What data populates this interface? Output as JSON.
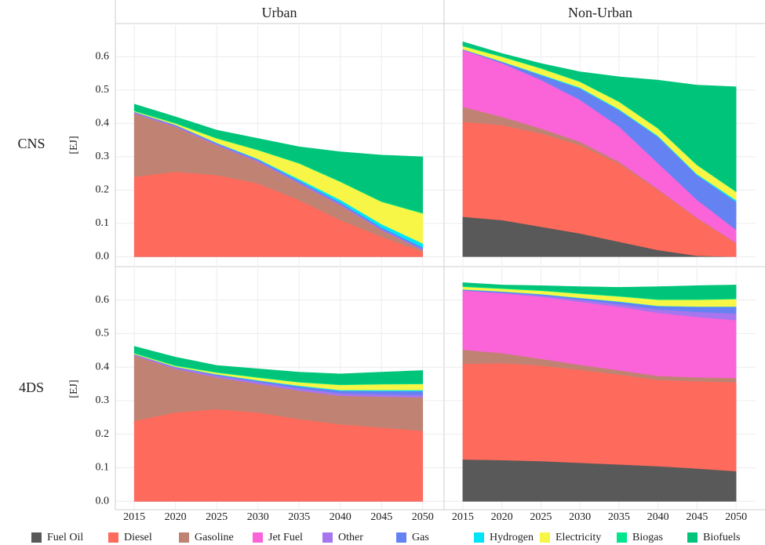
{
  "chart_data": {
    "type": "area",
    "stacked": true,
    "columns": [
      "Urban",
      "Non-Urban"
    ],
    "rows": [
      "CNS",
      "4DS"
    ],
    "y_label": "[EJ]",
    "x": [
      2015,
      2020,
      2025,
      2030,
      2035,
      2040,
      2045,
      2050
    ],
    "xlim": [
      2012.7,
      2052.5
    ],
    "xticks": [
      2015,
      2020,
      2025,
      2030,
      2035,
      2040,
      2045,
      2050
    ],
    "ylim": [
      -0.025,
      0.695
    ],
    "yticks": [
      {
        "value": 0,
        "label": "0.0"
      },
      0.1,
      0.2,
      0.3,
      0.4,
      0.5,
      0.6
    ],
    "grid": true,
    "series": [
      {
        "name": "Fuel Oil",
        "color": "#595959",
        "values": [
          [
            0,
            0,
            0,
            0,
            0,
            0,
            0,
            0
          ],
          [
            0.12,
            0.11,
            0.09,
            0.07,
            0.045,
            0.02,
            0.003,
            0
          ],
          [
            0,
            0,
            0,
            0,
            0,
            0,
            0,
            0
          ],
          [
            0.125,
            0.123,
            0.12,
            0.115,
            0.11,
            0.105,
            0.098,
            0.09
          ]
        ]
      },
      {
        "name": "Diesel",
        "color": "#fe6a5c",
        "values": [
          [
            0.24,
            0.255,
            0.245,
            0.22,
            0.17,
            0.11,
            0.06,
            0.015
          ],
          [
            0.285,
            0.285,
            0.28,
            0.265,
            0.235,
            0.18,
            0.112,
            0.04
          ],
          [
            0.24,
            0.265,
            0.275,
            0.265,
            0.245,
            0.23,
            0.22,
            0.21
          ],
          [
            0.285,
            0.289,
            0.285,
            0.277,
            0.268,
            0.257,
            0.26,
            0.265
          ]
        ]
      },
      {
        "name": "Gasoline",
        "color": "#c08373",
        "values": [
          [
            0.19,
            0.135,
            0.09,
            0.065,
            0.05,
            0.045,
            0.02,
            0.005
          ],
          [
            0.045,
            0.025,
            0.015,
            0.01,
            0.005,
            0.003,
            0.002,
            0.002
          ],
          [
            0.195,
            0.13,
            0.095,
            0.085,
            0.085,
            0.085,
            0.092,
            0.1
          ],
          [
            0.042,
            0.03,
            0.02,
            0.015,
            0.013,
            0.012,
            0.012,
            0.013
          ]
        ]
      },
      {
        "name": "Jet Fuel",
        "color": "#fb63d8",
        "values": [
          [
            0,
            0,
            0,
            0,
            0,
            0,
            0,
            0
          ],
          [
            0.17,
            0.16,
            0.145,
            0.125,
            0.105,
            0.077,
            0.053,
            0.038
          ],
          [
            0,
            0,
            0,
            0,
            0,
            0,
            0,
            0
          ],
          [
            0.176,
            0.178,
            0.185,
            0.188,
            0.189,
            0.188,
            0.18,
            0.172
          ]
        ]
      },
      {
        "name": "Other",
        "color": "#a676ee",
        "values": [
          [
            0.003,
            0.003,
            0.003,
            0.003,
            0.003,
            0.003,
            0.003,
            0.003
          ],
          [
            0.002,
            0.002,
            0.002,
            0.002,
            0.002,
            0.002,
            0.002,
            0.002
          ],
          [
            0.003,
            0.004,
            0.005,
            0.006,
            0.007,
            0.007,
            0.007,
            0.007
          ],
          [
            0.002,
            0.003,
            0.004,
            0.006,
            0.008,
            0.01,
            0.015,
            0.02
          ]
        ]
      },
      {
        "name": "Gas",
        "color": "#6582f2",
        "values": [
          [
            0.002,
            0.003,
            0.003,
            0.004,
            0.005,
            0.005,
            0.005,
            0.005
          ],
          [
            0,
            0.003,
            0.013,
            0.033,
            0.048,
            0.078,
            0.073,
            0.083
          ],
          [
            0.001,
            0.002,
            0.003,
            0.004,
            0.006,
            0.008,
            0.01,
            0.012
          ],
          [
            0.001,
            0.002,
            0.003,
            0.005,
            0.007,
            0.01,
            0.015,
            0.02
          ]
        ]
      },
      {
        "name": "Hydrogen",
        "color": "#00e5f5",
        "values": [
          [
            0,
            0,
            0.001,
            0.002,
            0.005,
            0.008,
            0.01,
            0.012
          ],
          [
            0.001,
            0.001,
            0.002,
            0.003,
            0.003,
            0.003,
            0.003,
            0.005
          ],
          [
            0,
            0,
            0.001,
            0.001,
            0.002,
            0.002,
            0.003,
            0.003
          ],
          [
            0.001,
            0.001,
            0.001,
            0.001,
            0.001,
            0.001,
            0.001,
            0.001
          ]
        ]
      },
      {
        "name": "Electricity",
        "color": "#f7f545",
        "values": [
          [
            0.002,
            0.004,
            0.013,
            0.026,
            0.047,
            0.054,
            0.067,
            0.09
          ],
          [
            0.009,
            0.014,
            0.018,
            0.017,
            0.022,
            0.022,
            0.027,
            0.025
          ],
          [
            0.002,
            0.003,
            0.005,
            0.008,
            0.01,
            0.015,
            0.017,
            0.018
          ],
          [
            0.008,
            0.008,
            0.01,
            0.012,
            0.015,
            0.018,
            0.02,
            0.022
          ]
        ]
      },
      {
        "name": "Biogas",
        "color": "#00e68c",
        "values": [
          [
            0.002,
            0.002,
            0.002,
            0.002,
            0.002,
            0.002,
            0.002,
            0.002
          ],
          [
            0.002,
            0.002,
            0.002,
            0.002,
            0.002,
            0.002,
            0.002,
            0.002
          ],
          [
            0.002,
            0.002,
            0.002,
            0.002,
            0.002,
            0.002,
            0.002,
            0.002
          ],
          [
            0.002,
            0.002,
            0.002,
            0.002,
            0.002,
            0.002,
            0.002,
            0.002
          ]
        ]
      },
      {
        "name": "Biofuels",
        "color": "#00c47a",
        "values": [
          [
            0.019,
            0.018,
            0.023,
            0.033,
            0.048,
            0.088,
            0.138,
            0.168
          ],
          [
            0.011,
            0.008,
            0.013,
            0.028,
            0.073,
            0.143,
            0.238,
            0.313
          ],
          [
            0.019,
            0.024,
            0.019,
            0.024,
            0.028,
            0.031,
            0.034,
            0.038
          ],
          [
            0.01,
            0.009,
            0.013,
            0.019,
            0.025,
            0.037,
            0.04,
            0.04
          ]
        ]
      }
    ]
  }
}
